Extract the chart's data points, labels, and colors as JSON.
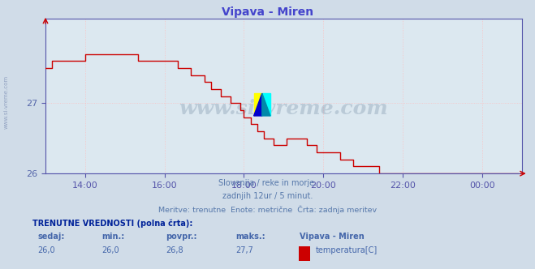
{
  "title": "Vipava - Miren",
  "title_color": "#4444cc",
  "bg_color": "#d0dce8",
  "plot_bg_color": "#dce8f0",
  "line_color": "#cc0000",
  "line_width": 1.0,
  "grid_color": "#ffbbbb",
  "axis_color": "#5555aa",
  "tick_color": "#5566aa",
  "ylim": [
    26.0,
    28.2
  ],
  "yticks": [
    26,
    27
  ],
  "xtick_labels": [
    "14:00",
    "16:00",
    "18:00",
    "20:00",
    "22:00",
    "00:00"
  ],
  "watermark": "www.si-vreme.com",
  "watermark_color": "#22446a",
  "watermark_alpha": 0.18,
  "footer_line1": "Slovenija / reke in morje.",
  "footer_line2": "zadnjih 12ur / 5 minut.",
  "footer_line3": "Meritve: trenutne  Enote: metrične  Črta: zadnja meritev",
  "footer_color": "#5577aa",
  "sidebar_text": "www.si-vreme.com",
  "sidebar_color": "#8899bb",
  "table_header": "TRENUTNE VREDNOSTI (polna črta):",
  "table_header_color": "#002299",
  "col_labels": [
    "sedaj:",
    "min.:",
    "povpr.:",
    "maks.:",
    "Vipava - Miren"
  ],
  "col_values": [
    "26,0",
    "26,0",
    "26,8",
    "27,7",
    "temperatura[C]"
  ],
  "col_color": "#4466aa",
  "legend_color": "#cc0000",
  "temp_data_y": [
    27.5,
    27.5,
    27.6,
    27.6,
    27.6,
    27.6,
    27.6,
    27.6,
    27.6,
    27.6,
    27.6,
    27.6,
    27.7,
    27.7,
    27.7,
    27.7,
    27.7,
    27.7,
    27.7,
    27.7,
    27.7,
    27.7,
    27.7,
    27.7,
    27.7,
    27.7,
    27.7,
    27.7,
    27.6,
    27.6,
    27.6,
    27.6,
    27.6,
    27.6,
    27.6,
    27.6,
    27.6,
    27.6,
    27.6,
    27.6,
    27.5,
    27.5,
    27.5,
    27.5,
    27.4,
    27.4,
    27.4,
    27.4,
    27.3,
    27.3,
    27.2,
    27.2,
    27.2,
    27.1,
    27.1,
    27.1,
    27.0,
    27.0,
    27.0,
    26.9,
    26.8,
    26.8,
    26.7,
    26.7,
    26.6,
    26.6,
    26.5,
    26.5,
    26.5,
    26.4,
    26.4,
    26.4,
    26.4,
    26.5,
    26.5,
    26.5,
    26.5,
    26.5,
    26.5,
    26.4,
    26.4,
    26.4,
    26.3,
    26.3,
    26.3,
    26.3,
    26.3,
    26.3,
    26.3,
    26.2,
    26.2,
    26.2,
    26.2,
    26.1,
    26.1,
    26.1,
    26.1,
    26.1,
    26.1,
    26.1,
    26.1,
    26.0,
    26.0,
    26.0,
    26.0,
    26.0,
    26.0,
    26.0,
    26.0,
    26.0,
    26.0,
    26.0,
    26.0,
    26.0,
    26.0,
    26.0,
    26.0,
    26.0,
    26.0,
    26.0,
    26.0,
    26.0,
    26.0,
    26.0,
    26.0,
    26.0,
    26.0,
    26.0,
    26.0,
    26.0,
    26.0,
    26.0,
    26.0,
    26.0,
    26.0,
    26.0,
    26.0,
    26.0,
    26.0,
    26.0,
    26.0,
    26.0,
    26.0,
    26.0
  ]
}
